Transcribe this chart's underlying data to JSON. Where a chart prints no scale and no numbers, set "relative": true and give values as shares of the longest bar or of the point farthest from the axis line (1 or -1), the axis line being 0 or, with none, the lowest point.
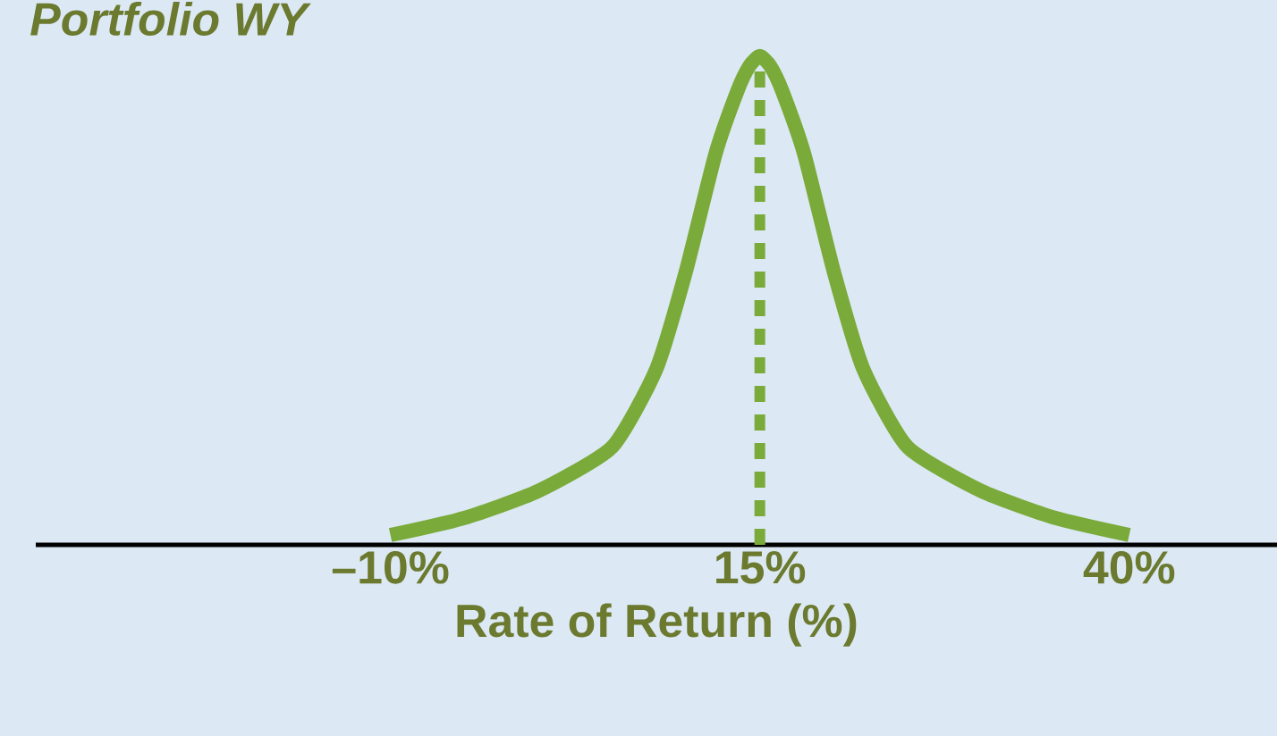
{
  "chart_data": {
    "type": "line",
    "title": "Portfolio WY",
    "xlabel": "Rate of Return (%)",
    "relative": true,
    "x": [
      -10,
      -5,
      0,
      5,
      8,
      10,
      12,
      13.5,
      14.3,
      15,
      15.7,
      16.5,
      18,
      20,
      22,
      25,
      30,
      35,
      40
    ],
    "series": [
      {
        "color": "#7aab3a",
        "values": [
          0.02,
          0.055,
          0.11,
          0.2,
          0.36,
          0.56,
          0.8,
          0.93,
          0.98,
          1,
          0.98,
          0.93,
          0.8,
          0.56,
          0.36,
          0.2,
          0.11,
          0.055,
          0.02
        ]
      }
    ],
    "xlim": [
      -34,
      50
    ],
    "xticks": [
      {
        "value": -10,
        "label": "–10%"
      },
      {
        "value": 15,
        "label": "15%"
      },
      {
        "value": 40,
        "label": "40%"
      }
    ],
    "ref_lines": [
      {
        "axis": "x",
        "value": 15,
        "color": "#7aab3a",
        "line_style": "dashed"
      }
    ],
    "grid": false
  }
}
